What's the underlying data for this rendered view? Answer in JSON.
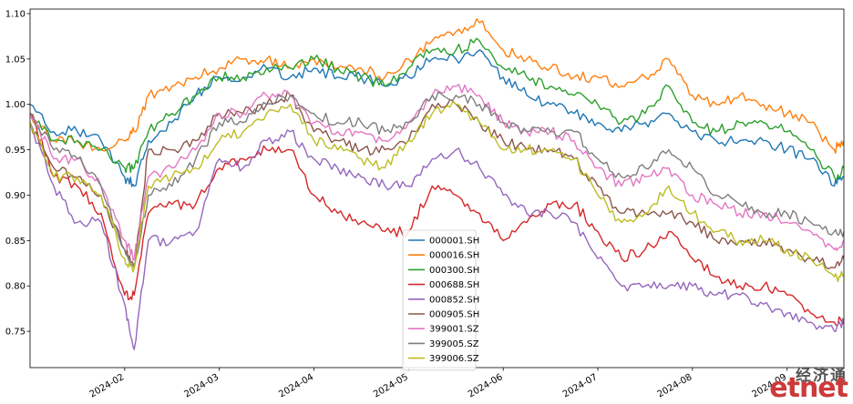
{
  "chart_data": {
    "type": "line",
    "title": "",
    "xlabel": "",
    "ylabel": "",
    "ylim": [
      0.71,
      1.105
    ],
    "yticks": [
      0.75,
      0.8,
      0.85,
      0.9,
      0.95,
      1.0,
      1.05,
      1.1
    ],
    "ytick_labels": [
      "0.75",
      "0.80",
      "0.85",
      "0.90",
      "0.95",
      "1.00",
      "1.05",
      "1.10"
    ],
    "xlim": [
      0,
      8.6
    ],
    "xticks": [
      1,
      2,
      3,
      4,
      5,
      6,
      7,
      8
    ],
    "xtick_labels": [
      "2024-02",
      "2024-03",
      "2024-04",
      "2024-05",
      "2024-06",
      "2024-07",
      "2024-08",
      "2024-09"
    ],
    "grid": false,
    "legend_position": "lower-center",
    "x": [
      0,
      0.25,
      0.5,
      0.75,
      1.0,
      1.1,
      1.25,
      1.5,
      1.75,
      2.0,
      2.25,
      2.5,
      2.75,
      3.0,
      3.25,
      3.5,
      3.75,
      4.0,
      4.25,
      4.5,
      4.75,
      5.0,
      5.25,
      5.5,
      5.75,
      6.0,
      6.25,
      6.5,
      6.75,
      7.0,
      7.25,
      7.5,
      7.75,
      8.0,
      8.25,
      8.5,
      8.6
    ],
    "series": [
      {
        "name": "000001.SH",
        "color": "#1f77b4",
        "values": [
          1.0,
          0.97,
          0.97,
          0.96,
          0.92,
          0.91,
          0.96,
          0.98,
          1.01,
          1.03,
          1.03,
          1.04,
          1.03,
          1.04,
          1.03,
          1.03,
          1.02,
          1.03,
          1.05,
          1.05,
          1.06,
          1.03,
          1.01,
          1.0,
          0.99,
          0.98,
          0.97,
          0.98,
          0.99,
          0.97,
          0.96,
          0.96,
          0.96,
          0.95,
          0.94,
          0.91,
          0.92
        ]
      },
      {
        "name": "000016.SH",
        "color": "#ff7f0e",
        "values": [
          0.99,
          0.96,
          0.96,
          0.95,
          0.96,
          0.97,
          1.01,
          1.02,
          1.03,
          1.04,
          1.05,
          1.05,
          1.04,
          1.05,
          1.04,
          1.04,
          1.03,
          1.05,
          1.07,
          1.08,
          1.09,
          1.06,
          1.05,
          1.04,
          1.03,
          1.03,
          1.02,
          1.03,
          1.05,
          1.01,
          1.0,
          1.01,
          1.0,
          0.99,
          0.98,
          0.95,
          0.96
        ]
      },
      {
        "name": "000300.SH",
        "color": "#2ca02c",
        "values": [
          0.99,
          0.96,
          0.96,
          0.95,
          0.93,
          0.93,
          0.97,
          0.99,
          1.01,
          1.03,
          1.03,
          1.04,
          1.04,
          1.05,
          1.04,
          1.03,
          1.02,
          1.04,
          1.06,
          1.06,
          1.07,
          1.04,
          1.03,
          1.02,
          1.01,
          1.0,
          0.98,
          0.99,
          1.02,
          0.98,
          0.97,
          0.98,
          0.98,
          0.97,
          0.95,
          0.92,
          0.93
        ]
      },
      {
        "name": "000688.SH",
        "color": "#d62728",
        "values": [
          0.99,
          0.92,
          0.91,
          0.88,
          0.79,
          0.79,
          0.88,
          0.89,
          0.89,
          0.93,
          0.94,
          0.95,
          0.95,
          0.9,
          0.88,
          0.87,
          0.86,
          0.86,
          0.91,
          0.9,
          0.88,
          0.85,
          0.87,
          0.89,
          0.89,
          0.86,
          0.83,
          0.84,
          0.86,
          0.83,
          0.81,
          0.8,
          0.8,
          0.79,
          0.77,
          0.76,
          0.76
        ]
      },
      {
        "name": "000852.SH",
        "color": "#9467bd",
        "values": [
          0.98,
          0.91,
          0.87,
          0.87,
          0.78,
          0.73,
          0.85,
          0.85,
          0.86,
          0.94,
          0.93,
          0.96,
          0.97,
          0.94,
          0.93,
          0.92,
          0.91,
          0.91,
          0.94,
          0.95,
          0.93,
          0.9,
          0.88,
          0.88,
          0.87,
          0.83,
          0.8,
          0.8,
          0.8,
          0.8,
          0.79,
          0.79,
          0.78,
          0.77,
          0.76,
          0.75,
          0.76
        ]
      },
      {
        "name": "000905.SH",
        "color": "#8c564b",
        "values": [
          0.98,
          0.93,
          0.92,
          0.9,
          0.84,
          0.82,
          0.95,
          0.95,
          0.96,
          0.99,
          0.99,
          1.0,
          1.01,
          0.97,
          0.96,
          0.95,
          0.95,
          0.96,
          1.0,
          1.0,
          0.98,
          0.96,
          0.95,
          0.95,
          0.94,
          0.91,
          0.88,
          0.88,
          0.88,
          0.87,
          0.85,
          0.85,
          0.85,
          0.84,
          0.83,
          0.82,
          0.83
        ]
      },
      {
        "name": "399001.SZ",
        "color": "#e377c2",
        "values": [
          0.99,
          0.94,
          0.94,
          0.91,
          0.85,
          0.83,
          0.92,
          0.93,
          0.95,
          0.99,
          0.99,
          1.01,
          1.01,
          0.98,
          0.97,
          0.97,
          0.96,
          0.98,
          1.01,
          1.02,
          1.01,
          0.98,
          0.97,
          0.97,
          0.96,
          0.93,
          0.91,
          0.92,
          0.93,
          0.9,
          0.89,
          0.88,
          0.88,
          0.87,
          0.86,
          0.84,
          0.85
        ]
      },
      {
        "name": "399005.SZ",
        "color": "#7f7f7f",
        "values": [
          0.99,
          0.95,
          0.94,
          0.91,
          0.84,
          0.82,
          0.9,
          0.91,
          0.94,
          0.98,
          0.98,
          1.0,
          1.01,
          0.99,
          0.98,
          0.98,
          0.97,
          0.98,
          1.01,
          1.01,
          1.0,
          0.98,
          0.97,
          0.97,
          0.97,
          0.94,
          0.92,
          0.93,
          0.95,
          0.93,
          0.9,
          0.89,
          0.88,
          0.88,
          0.87,
          0.86,
          0.86
        ]
      },
      {
        "name": "399006.SZ",
        "color": "#bcbd22",
        "values": [
          0.98,
          0.92,
          0.92,
          0.9,
          0.83,
          0.82,
          0.91,
          0.92,
          0.93,
          0.96,
          0.97,
          0.99,
          1.0,
          0.96,
          0.95,
          0.94,
          0.93,
          0.96,
          0.99,
          1.0,
          0.98,
          0.95,
          0.95,
          0.95,
          0.94,
          0.9,
          0.87,
          0.88,
          0.91,
          0.88,
          0.86,
          0.85,
          0.85,
          0.84,
          0.83,
          0.81,
          0.81
        ]
      }
    ]
  },
  "watermark": {
    "chinese": "经济通",
    "english": "etnet"
  }
}
